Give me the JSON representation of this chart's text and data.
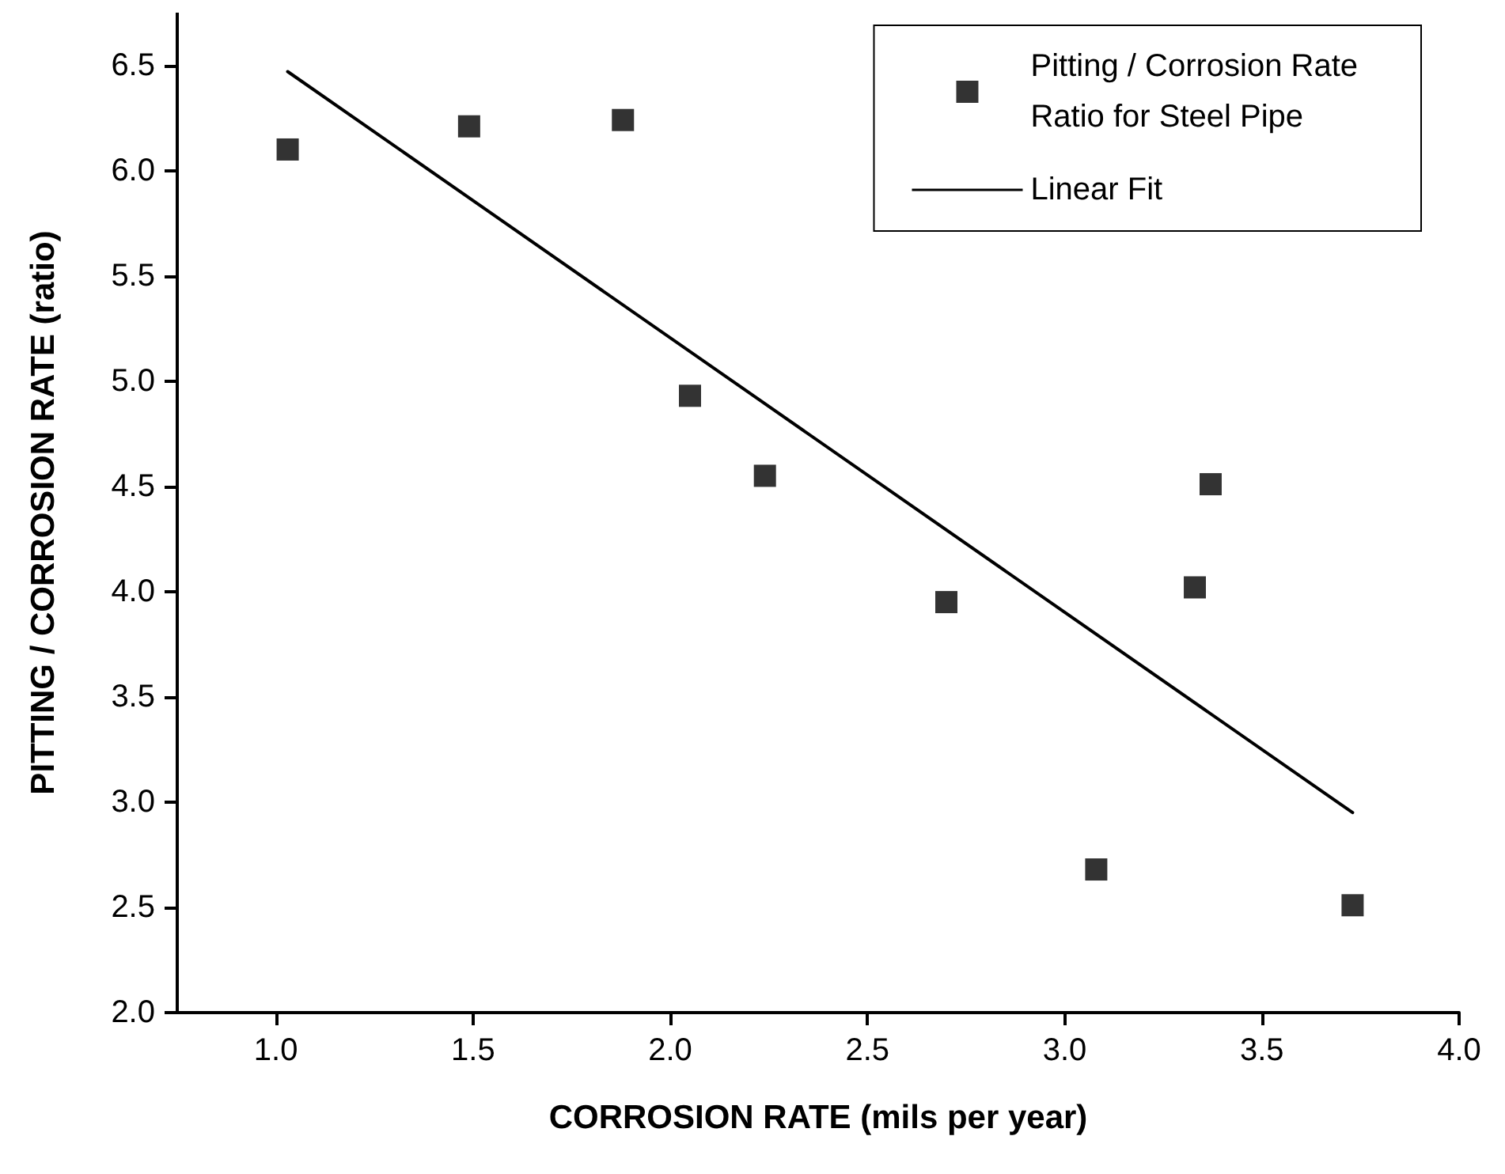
{
  "chart_data": {
    "type": "scatter",
    "xlabel": "CORROSION RATE (mils per year)",
    "ylabel": "PITTING / CORROSION RATE (ratio)",
    "xlim": [
      0.75,
      4.0
    ],
    "xticks": [
      {
        "value": 1,
        "label": "1.0"
      },
      1.5,
      {
        "value": 2,
        "label": "2.0"
      },
      2.5,
      {
        "value": 3,
        "label": "3.0"
      },
      3.5,
      {
        "value": 4,
        "label": "4.0"
      }
    ],
    "ylim": [
      2.0,
      6.75
    ],
    "yticks": [
      {
        "value": 2,
        "label": "2.0"
      },
      2.5,
      {
        "value": 3,
        "label": "3.0"
      },
      3.5,
      {
        "value": 4,
        "label": "4.0"
      },
      4.5,
      {
        "value": 5,
        "label": "5.0"
      },
      5.5,
      {
        "value": 6,
        "label": "6.0"
      },
      6.5
    ],
    "grid": false,
    "legend": "top right",
    "marker": "square",
    "series": [
      {
        "name": "Pitting / Corrosion Rate\nRatio for Steel Pipe",
        "color": "#000000",
        "x": [
          1.03,
          1.49,
          1.88,
          2.05,
          2.24,
          2.7,
          3.08,
          3.33,
          3.37,
          3.73
        ],
        "values": [
          6.1,
          6.21,
          6.24,
          4.93,
          4.55,
          3.95,
          2.68,
          4.02,
          4.51,
          2.51
        ]
      },
      {
        "name": "Linear Fit",
        "type": "line",
        "color": "#000000",
        "marker": "none",
        "line_style": "solid",
        "x": [
          1.03,
          3.73
        ],
        "values": [
          6.47,
          2.95
        ]
      }
    ]
  }
}
